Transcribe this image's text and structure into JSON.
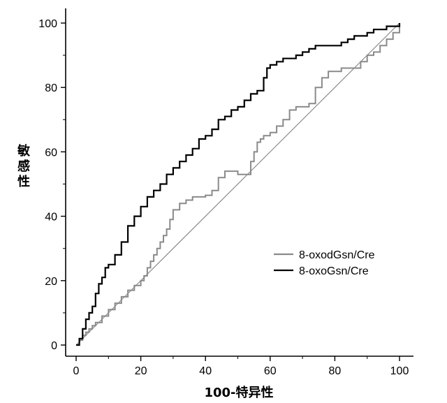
{
  "chart_data": {
    "type": "line",
    "xlabel": "100-特异性",
    "ylabel": "敏感性",
    "xlim": [
      0,
      100
    ],
    "ylim": [
      0,
      100
    ],
    "xticks": [
      "0",
      "20",
      "40",
      "60",
      "80",
      "100"
    ],
    "yticks": [
      "0",
      "20",
      "40",
      "60",
      "80",
      "100"
    ],
    "legend_position": "lower-right",
    "grid": false,
    "diagonal_reference": true,
    "series": [
      {
        "name": "8-oxodGsn/Cre",
        "color": "#8a8a8a",
        "x": [
          0,
          1,
          2,
          3,
          4,
          5,
          6,
          8,
          10,
          12,
          14,
          16,
          18,
          20,
          21,
          22,
          23,
          24,
          25,
          26,
          27,
          28,
          29,
          30,
          32,
          34,
          36,
          38,
          40,
          42,
          44,
          46,
          48,
          50,
          52,
          54,
          55,
          56,
          57,
          58,
          60,
          62,
          64,
          66,
          68,
          70,
          72,
          74,
          76,
          78,
          80,
          82,
          84,
          86,
          88,
          90,
          92,
          94,
          96,
          98,
          100
        ],
        "y": [
          0,
          1.5,
          3,
          4,
          5,
          6,
          7,
          9,
          11,
          13,
          15,
          17,
          18.5,
          20,
          21.5,
          24,
          26,
          28,
          30,
          32,
          34,
          36,
          39,
          42,
          44,
          45,
          46,
          46,
          46.5,
          48,
          52,
          54,
          54,
          53,
          53,
          57,
          60,
          63,
          64,
          65,
          66,
          68,
          70,
          73,
          74,
          74,
          75,
          80,
          83,
          85,
          85,
          86,
          86,
          86,
          88,
          90,
          91,
          93,
          95,
          97,
          100
        ]
      },
      {
        "name": "8-oxoGsn/Cre",
        "color": "#000000",
        "x": [
          0,
          1,
          2,
          3,
          4,
          5,
          6,
          7,
          8,
          9,
          10,
          12,
          14,
          16,
          18,
          20,
          22,
          24,
          26,
          28,
          30,
          32,
          34,
          36,
          38,
          40,
          42,
          44,
          46,
          48,
          50,
          52,
          54,
          56,
          58,
          59,
          60,
          62,
          64,
          66,
          68,
          70,
          72,
          74,
          76,
          78,
          80,
          82,
          84,
          86,
          88,
          90,
          92,
          94,
          96,
          98,
          100
        ],
        "y": [
          0,
          2,
          5,
          8,
          10,
          12,
          16,
          19,
          21,
          24,
          25,
          28,
          32,
          37,
          40,
          43,
          46,
          48,
          50,
          53,
          55,
          57,
          59,
          61,
          64,
          65,
          67,
          70,
          71,
          73,
          74,
          76,
          78,
          79,
          83,
          86,
          87,
          88,
          89,
          89,
          90,
          91,
          92,
          93,
          93,
          93,
          93,
          94,
          95,
          96,
          96,
          97,
          98,
          98,
          99,
          99,
          100
        ]
      }
    ]
  }
}
